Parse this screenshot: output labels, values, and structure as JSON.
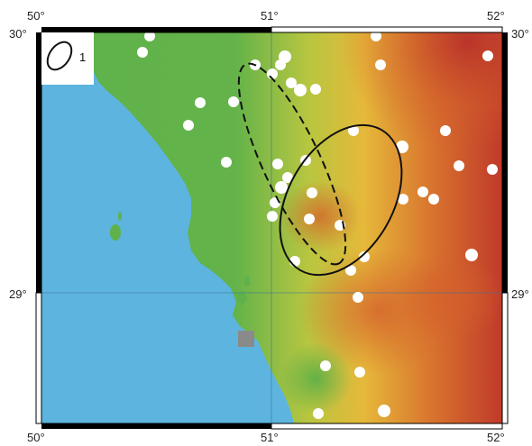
{
  "map": {
    "lon_labels_top": [
      "50°",
      "51°",
      "52°"
    ],
    "lon_labels_bottom": [
      "50°",
      "51°",
      "52°"
    ],
    "lat_labels_left": [
      "30°",
      "29°"
    ],
    "lat_labels_right": [
      "30°",
      "29°"
    ],
    "legend": {
      "label": "1",
      "icon": "ellipse-icon"
    },
    "colors": {
      "sea": "#5db4de",
      "land_low": "#5fb24a",
      "land_mid": "#e6c23a",
      "land_high": "#c8402a",
      "station": "#ffffff",
      "frame": "#000000"
    },
    "station_count": 50,
    "ellipses": [
      {
        "name": "dashed-error-ellipse",
        "style": "dashed"
      },
      {
        "name": "solid-error-ellipse",
        "style": "solid"
      }
    ]
  }
}
